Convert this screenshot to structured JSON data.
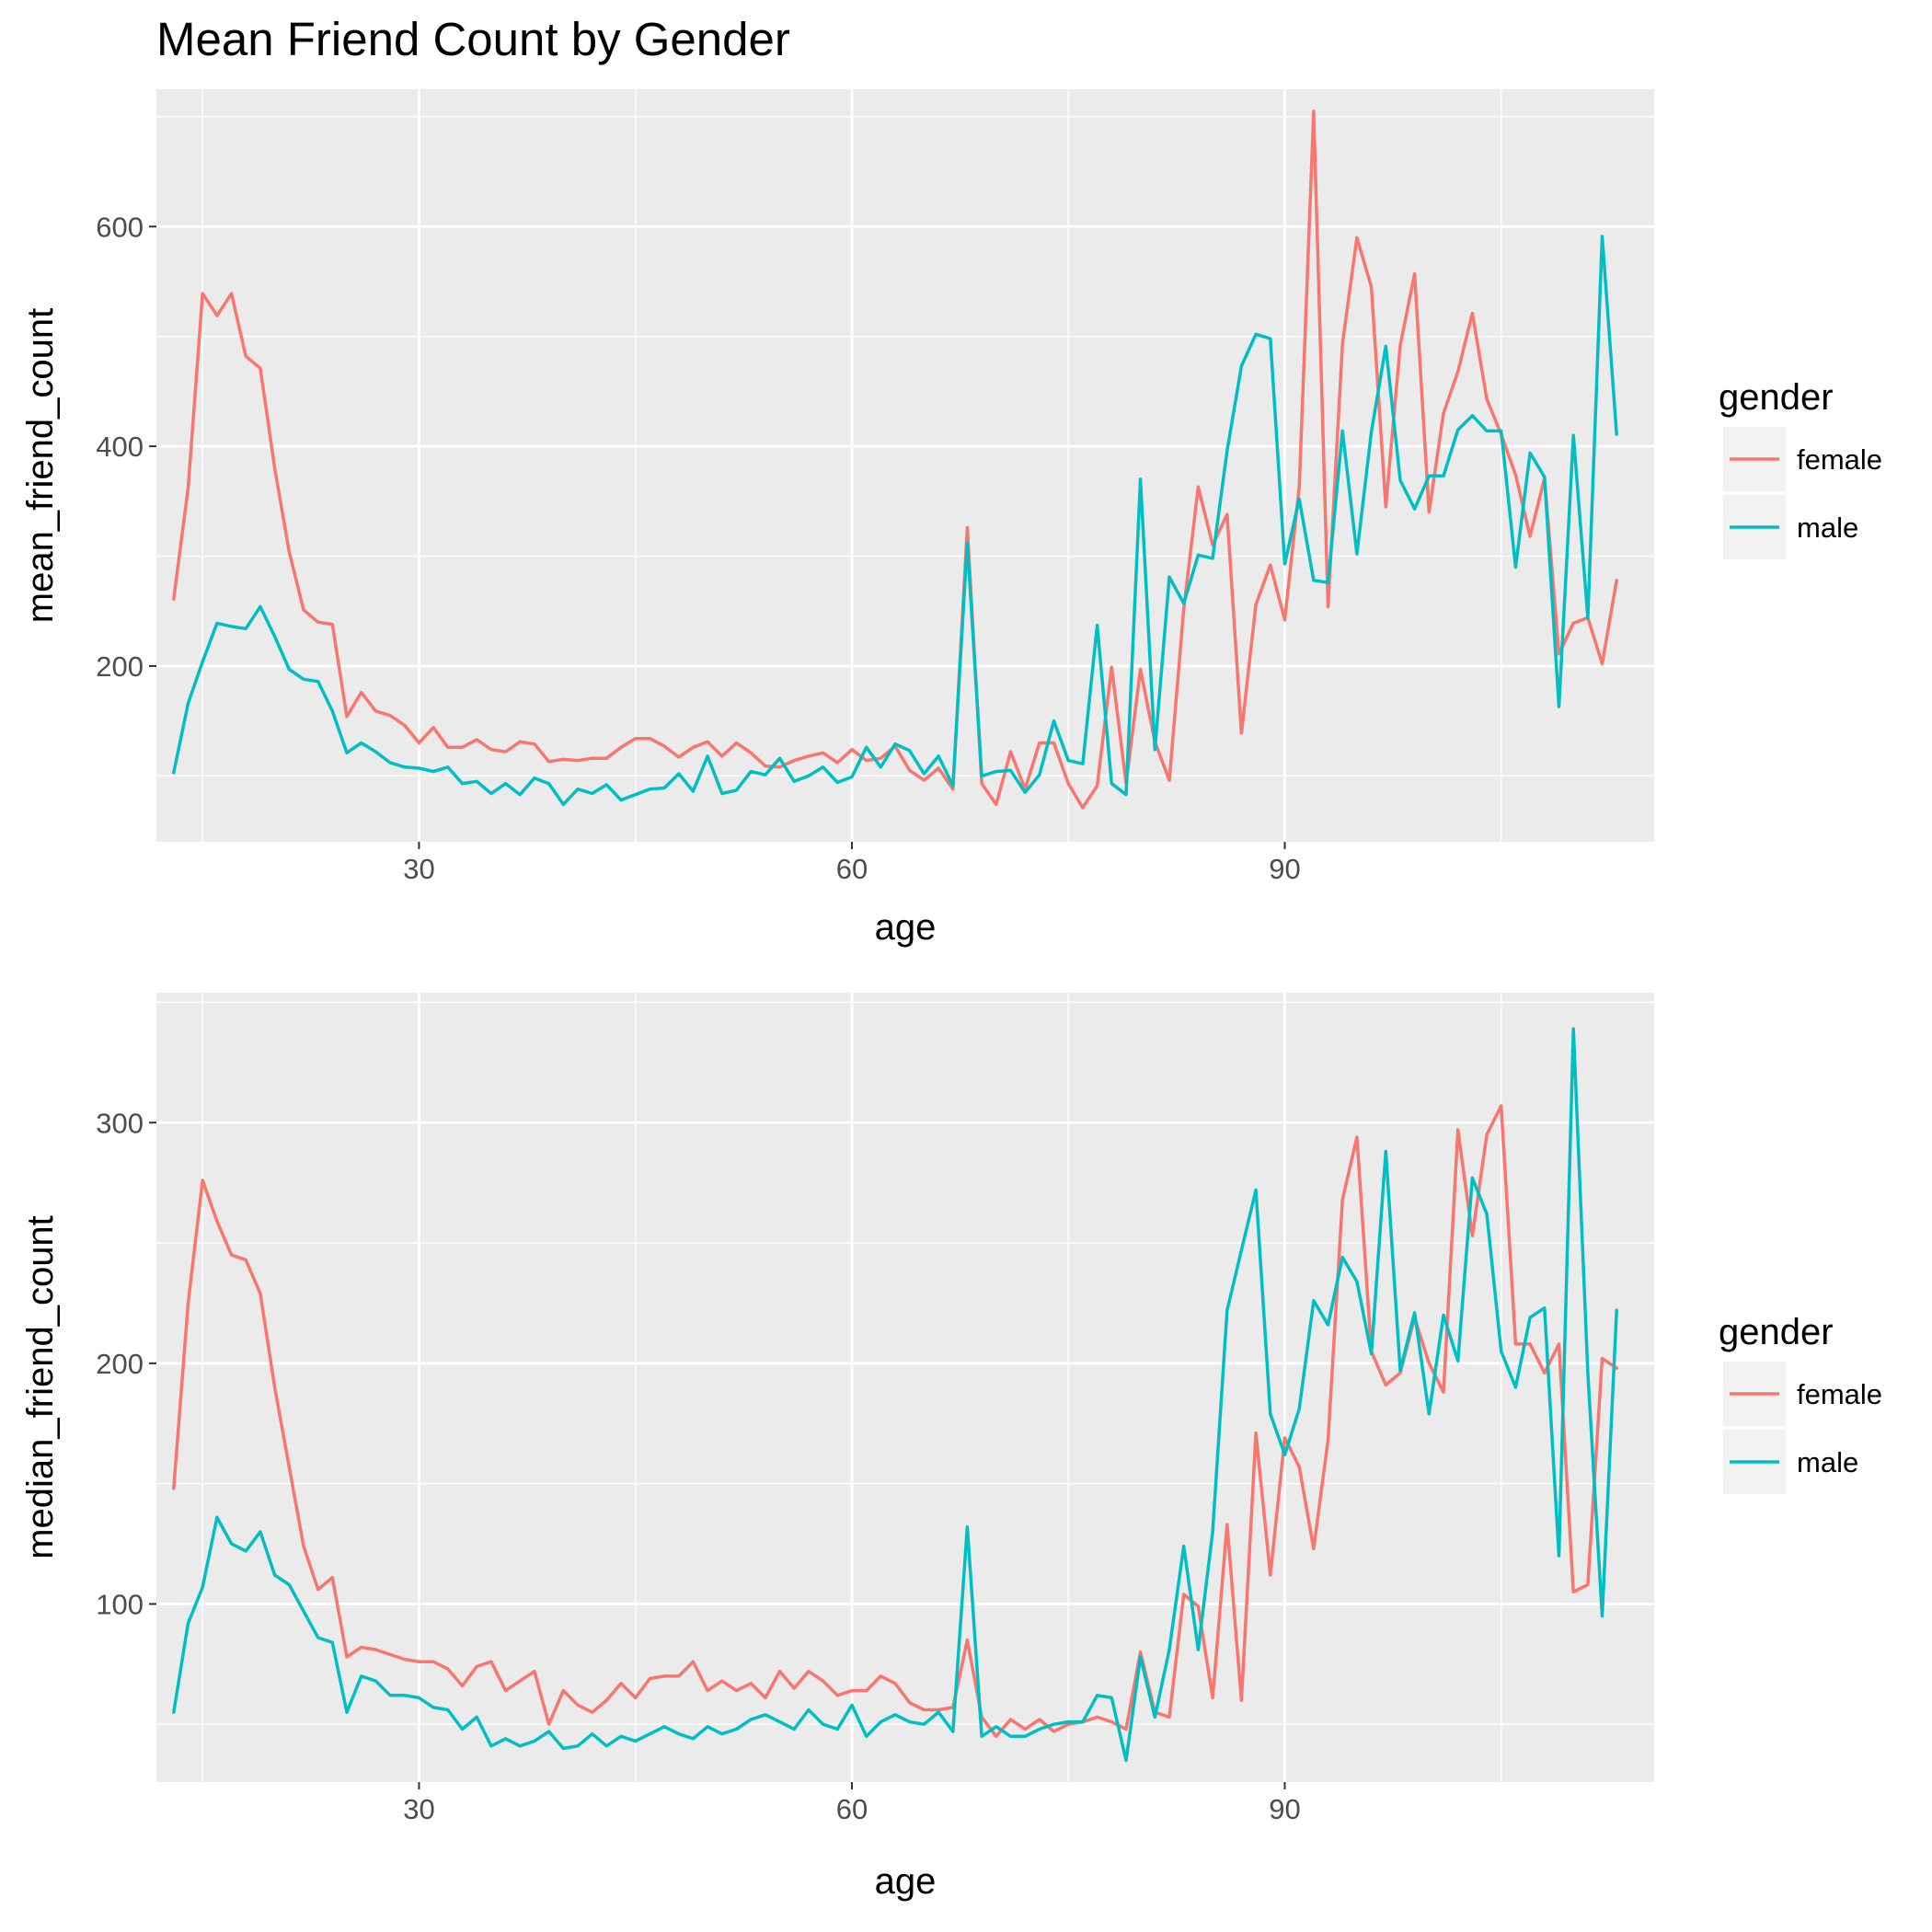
{
  "figure_title": "Mean Friend Count by Gender",
  "chart_data": [
    {
      "type": "line",
      "title": "Mean Friend Count by Gender",
      "xlabel": "age",
      "ylabel": "mean_friend_count",
      "xlim": [
        11.8,
        115.6
      ],
      "ylim": [
        40,
        725
      ],
      "x_ticks": [
        30,
        60,
        90
      ],
      "y_ticks": [
        200,
        400,
        600
      ],
      "grid": true,
      "legend": {
        "title": "gender",
        "placement": "right",
        "entries": [
          "female",
          "male"
        ]
      },
      "series": [
        {
          "name": "female",
          "color": "#F8766D",
          "x": [
            13,
            14,
            15,
            16,
            17,
            18,
            19,
            20,
            21,
            22,
            23,
            24,
            25,
            26,
            27,
            28,
            29,
            30,
            31,
            32,
            33,
            34,
            35,
            36,
            37,
            38,
            39,
            40,
            41,
            42,
            43,
            44,
            45,
            46,
            47,
            48,
            49,
            50,
            51,
            52,
            53,
            54,
            55,
            56,
            57,
            58,
            59,
            60,
            61,
            62,
            63,
            64,
            65,
            66,
            67,
            68,
            69,
            70,
            71,
            72,
            73,
            74,
            75,
            76,
            77,
            78,
            79,
            80,
            81,
            82,
            83,
            84,
            85,
            86,
            87,
            88,
            89,
            90,
            91,
            92,
            93,
            94,
            95,
            96,
            97,
            98,
            99,
            100,
            101,
            102,
            103,
            104,
            105,
            106,
            107,
            108,
            109,
            110,
            111,
            112,
            113
          ],
          "y": [
            261,
            362,
            539,
            519,
            539,
            482,
            471,
            380,
            304,
            251,
            240,
            238,
            154,
            176,
            159,
            155,
            146,
            130,
            144,
            126,
            126,
            133,
            124,
            122,
            131,
            129,
            113,
            115,
            114,
            116,
            116,
            126,
            134,
            134,
            127,
            117,
            126,
            131,
            118,
            130,
            121,
            109,
            108,
            114,
            118,
            121,
            112,
            124,
            114,
            116,
            127,
            105,
            96,
            107,
            88,
            326,
            93,
            74,
            122,
            88,
            130,
            130,
            93,
            71,
            91,
            199,
            93,
            197,
            131,
            96,
            252,
            363,
            310,
            338,
            139,
            256,
            292,
            242,
            363,
            705,
            254,
            493,
            590,
            545,
            345,
            492,
            557,
            340,
            430,
            468,
            521,
            443,
            411,
            374,
            318,
            371,
            211,
            239,
            244,
            202,
            278
          ]
        },
        {
          "name": "male",
          "color": "#00BFC4",
          "x": [
            13,
            14,
            15,
            16,
            17,
            18,
            19,
            20,
            21,
            22,
            23,
            24,
            25,
            26,
            27,
            28,
            29,
            30,
            31,
            32,
            33,
            34,
            35,
            36,
            37,
            38,
            39,
            40,
            41,
            42,
            43,
            44,
            45,
            46,
            47,
            48,
            49,
            50,
            51,
            52,
            53,
            54,
            55,
            56,
            57,
            58,
            59,
            60,
            61,
            62,
            63,
            64,
            65,
            66,
            67,
            68,
            69,
            70,
            71,
            72,
            73,
            74,
            75,
            76,
            77,
            78,
            79,
            80,
            81,
            82,
            83,
            84,
            85,
            86,
            87,
            88,
            89,
            90,
            91,
            92,
            93,
            94,
            95,
            96,
            97,
            98,
            99,
            100,
            101,
            102,
            103,
            104,
            105,
            106,
            107,
            108,
            109,
            110,
            111,
            112,
            113
          ],
          "y": [
            103,
            166,
            204,
            239,
            236,
            234,
            254,
            227,
            197,
            188,
            186,
            159,
            121,
            130,
            122,
            112,
            108,
            107,
            104,
            108,
            93,
            95,
            84,
            93,
            83,
            98,
            93,
            74,
            88,
            84,
            92,
            78,
            83,
            88,
            89,
            102,
            86,
            118,
            84,
            87,
            104,
            101,
            116,
            95,
            100,
            108,
            94,
            99,
            126,
            108,
            129,
            123,
            102,
            118,
            91,
            312,
            100,
            104,
            105,
            85,
            101,
            150,
            114,
            111,
            237,
            93,
            83,
            370,
            124,
            281,
            257,
            301,
            298,
            396,
            473,
            502,
            498,
            293,
            352,
            278,
            276,
            414,
            302,
            413,
            491,
            369,
            343,
            373,
            373,
            415,
            428,
            414,
            414,
            290,
            394,
            372,
            163,
            410,
            244,
            591,
            411
          ]
        }
      ]
    },
    {
      "type": "line",
      "title": "",
      "xlabel": "age",
      "ylabel": "median_friend_count",
      "xlim": [
        11.8,
        115.6
      ],
      "ylim": [
        26,
        354
      ],
      "x_ticks": [
        30,
        60,
        90
      ],
      "y_ticks": [
        100,
        200,
        300
      ],
      "grid": true,
      "legend": {
        "title": "gender",
        "placement": "right",
        "entries": [
          "female",
          "male"
        ]
      },
      "series": [
        {
          "name": "female",
          "color": "#F8766D",
          "x": [
            13,
            14,
            15,
            16,
            17,
            18,
            19,
            20,
            21,
            22,
            23,
            24,
            25,
            26,
            27,
            28,
            29,
            30,
            31,
            32,
            33,
            34,
            35,
            36,
            37,
            38,
            39,
            40,
            41,
            42,
            43,
            44,
            45,
            46,
            47,
            48,
            49,
            50,
            51,
            52,
            53,
            54,
            55,
            56,
            57,
            58,
            59,
            60,
            61,
            62,
            63,
            64,
            65,
            66,
            67,
            68,
            69,
            70,
            71,
            72,
            73,
            74,
            75,
            76,
            77,
            78,
            79,
            80,
            81,
            82,
            83,
            84,
            85,
            86,
            87,
            88,
            89,
            90,
            91,
            92,
            93,
            94,
            95,
            96,
            97,
            98,
            99,
            100,
            101,
            102,
            103,
            104,
            105,
            106,
            107,
            108,
            109,
            110,
            111,
            112,
            113
          ],
          "y": [
            148,
            225,
            276,
            259,
            245,
            243,
            229,
            190,
            157,
            124,
            106,
            111,
            78,
            82,
            81,
            79,
            77,
            76,
            76,
            73,
            66,
            74,
            76,
            64,
            68,
            72,
            50,
            64,
            58,
            55,
            60,
            67,
            61,
            69,
            70,
            70,
            76,
            64,
            68,
            64,
            67,
            61,
            72,
            65,
            72,
            68,
            62,
            64,
            64,
            70,
            67,
            59,
            56,
            56,
            57,
            85,
            53,
            45,
            52,
            48,
            52,
            47,
            50,
            51,
            53,
            51,
            48,
            80,
            55,
            53,
            104,
            99,
            61,
            133,
            60,
            171,
            112,
            169,
            157,
            123,
            168,
            268,
            294,
            205,
            191,
            196,
            219,
            200,
            188,
            297,
            253,
            295,
            307,
            208,
            208,
            196,
            208,
            105,
            108,
            202,
            198
          ]
        },
        {
          "name": "male",
          "color": "#00BFC4",
          "x": [
            13,
            14,
            15,
            16,
            17,
            18,
            19,
            20,
            21,
            22,
            23,
            24,
            25,
            26,
            27,
            28,
            29,
            30,
            31,
            32,
            33,
            34,
            35,
            36,
            37,
            38,
            39,
            40,
            41,
            42,
            43,
            44,
            45,
            46,
            47,
            48,
            49,
            50,
            51,
            52,
            53,
            54,
            55,
            56,
            57,
            58,
            59,
            60,
            61,
            62,
            63,
            64,
            65,
            66,
            67,
            68,
            69,
            70,
            71,
            72,
            73,
            74,
            75,
            76,
            77,
            78,
            79,
            80,
            81,
            82,
            83,
            84,
            85,
            86,
            87,
            88,
            89,
            90,
            91,
            92,
            93,
            94,
            95,
            96,
            97,
            98,
            99,
            100,
            101,
            102,
            103,
            104,
            105,
            106,
            107,
            108,
            109,
            110,
            111,
            112,
            113
          ],
          "y": [
            55,
            92,
            107,
            136,
            125,
            122,
            130,
            112,
            108,
            97,
            86,
            84,
            55,
            70,
            68,
            62,
            62,
            61,
            57,
            56,
            48,
            53,
            41,
            44,
            41,
            43,
            47,
            40,
            41,
            46,
            41,
            45,
            43,
            46,
            49,
            46,
            44,
            49,
            46,
            48,
            52,
            54,
            51,
            48,
            56,
            50,
            48,
            58,
            45,
            51,
            54,
            51,
            50,
            55,
            47,
            132,
            45,
            49,
            45,
            45,
            48,
            50,
            51,
            51,
            62,
            61,
            35,
            78,
            53,
            81,
            124,
            81,
            130,
            222,
            247,
            272,
            179,
            162,
            181,
            226,
            216,
            244,
            234,
            204,
            288,
            197,
            221,
            179,
            220,
            201,
            277,
            262,
            205,
            190,
            219,
            223,
            120,
            339,
            196,
            95,
            222
          ]
        }
      ]
    }
  ]
}
